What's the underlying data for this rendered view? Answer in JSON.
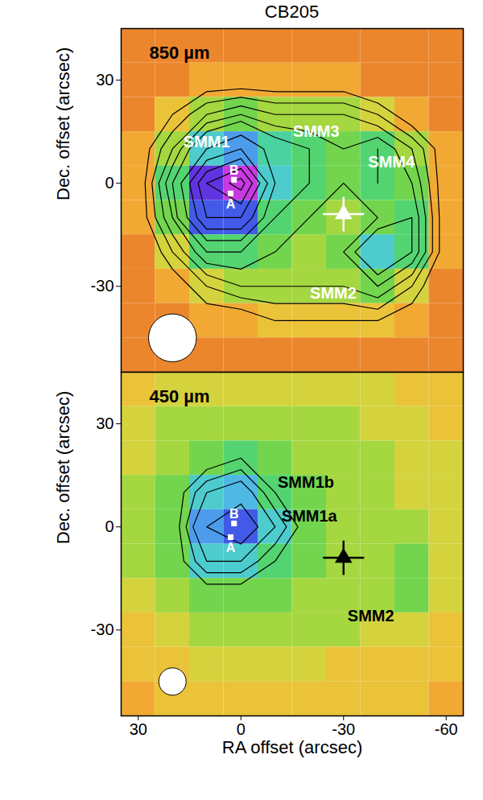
{
  "chart_data": [
    {
      "type": "contour_map",
      "title": "CB205",
      "panel_label": "850 µm",
      "ylabel": "Dec. offset (arcsec)",
      "tick_labels": "y",
      "color": "white",
      "xlim": [
        35,
        -65
      ],
      "ylim": [
        -55,
        45
      ],
      "xticks": [
        30,
        0,
        -30,
        -60
      ],
      "yticks": [
        -30,
        0,
        30
      ],
      "zlim": [
        0,
        10
      ],
      "contour_levels": [
        2,
        2.5,
        3,
        3.5,
        4,
        5,
        6,
        7,
        8,
        9
      ],
      "grid": {
        "x": [
          30,
          20,
          10,
          0,
          -10,
          -20,
          -30,
          -40,
          -50,
          -60
        ],
        "y": [
          40,
          30,
          20,
          10,
          0,
          -10,
          -20,
          -30,
          -40,
          -50
        ],
        "values": [
          [
            1,
            1,
            1,
            1,
            1,
            1,
            1,
            1,
            1,
            1
          ],
          [
            1,
            1,
            1.5,
            1.5,
            1.5,
            1.5,
            1.5,
            1,
            1,
            1
          ],
          [
            1,
            2,
            3,
            3.5,
            3,
            3,
            3,
            2.5,
            1.5,
            1
          ],
          [
            1.5,
            3,
            5,
            6,
            4.5,
            4,
            3.5,
            4,
            3,
            1.5
          ],
          [
            1.5,
            4,
            8,
            9.5,
            5,
            4,
            3.5,
            4,
            3.5,
            1.5
          ],
          [
            1.5,
            3.5,
            7,
            7,
            4,
            3.5,
            3,
            3.5,
            4,
            1.5
          ],
          [
            1,
            2.5,
            4,
            4,
            3.5,
            3,
            3.5,
            5,
            4,
            1.5
          ],
          [
            1,
            1.5,
            2.5,
            3,
            3,
            3,
            3,
            3.5,
            2.5,
            1
          ],
          [
            1,
            1,
            1.5,
            1.5,
            2,
            2,
            2,
            2,
            1.5,
            1
          ],
          [
            1,
            1,
            1,
            1,
            1,
            1,
            1,
            1,
            1,
            1
          ]
        ]
      },
      "annotations": [
        {
          "text": "SMM1",
          "x": 10,
          "y": 12
        },
        {
          "text": "SMM3",
          "x": -22,
          "y": 15
        },
        {
          "text": "SMM4",
          "x": -44,
          "y": 6
        },
        {
          "text": "SMM2",
          "x": -27,
          "y": -32
        }
      ],
      "protostars": [
        {
          "label": "A",
          "x": 3,
          "y": -3
        },
        {
          "label": "B",
          "x": 2,
          "y": 1
        }
      ],
      "star": {
        "x": -30,
        "y": -9,
        "xerr": 6,
        "yerr": 5
      },
      "beam": {
        "x": 20,
        "y": -45,
        "diameter": 14
      }
    },
    {
      "type": "contour_map",
      "panel_label": "450 µm",
      "ylabel": "Dec. offset (arcsec)",
      "xlabel": "RA offset (arcsec)",
      "color": "black",
      "xlim": [
        35,
        -65
      ],
      "ylim": [
        -55,
        45
      ],
      "xticks": [
        30,
        0,
        -30,
        -60
      ],
      "yticks": [
        -30,
        0,
        30
      ],
      "zlim": [
        0,
        10
      ],
      "contour_levels": [
        4,
        4.5,
        5,
        6
      ],
      "grid": {
        "x": [
          30,
          20,
          10,
          0,
          -10,
          -20,
          -30,
          -40,
          -50,
          -60
        ],
        "y": [
          40,
          30,
          20,
          10,
          0,
          -10,
          -20,
          -30,
          -40,
          -50
        ],
        "values": [
          [
            2,
            2.5,
            2.5,
            2.5,
            2.5,
            2.5,
            2.5,
            2.5,
            2,
            2
          ],
          [
            2.5,
            3,
            3,
            3,
            3,
            3,
            3,
            2.5,
            2.5,
            2
          ],
          [
            2.5,
            3,
            3.5,
            4,
            3.5,
            3,
            3,
            3,
            2.5,
            2.5
          ],
          [
            3,
            3.5,
            5,
            5.5,
            4,
            3.5,
            3,
            3,
            2.5,
            2.5
          ],
          [
            3,
            3.5,
            6,
            7,
            5,
            3.5,
            3,
            3,
            3,
            2.5
          ],
          [
            3,
            3.5,
            5,
            5,
            4,
            3.5,
            3,
            3,
            3.5,
            2.5
          ],
          [
            2.5,
            3,
            3.5,
            3.5,
            3.5,
            3,
            3,
            3,
            3.5,
            2.5
          ],
          [
            2,
            2.5,
            3,
            3,
            3,
            3,
            3,
            2.5,
            2.5,
            2
          ],
          [
            2,
            2,
            2.5,
            2.5,
            2.5,
            2.5,
            2,
            2,
            2,
            2
          ],
          [
            1.5,
            2,
            2,
            2,
            2,
            2,
            2,
            2,
            2,
            1.5
          ]
        ]
      },
      "annotations": [
        {
          "text": "SMM1b",
          "x": -19,
          "y": 13
        },
        {
          "text": "SMM1a",
          "x": -20,
          "y": 3
        },
        {
          "text": "SMM2",
          "x": -38,
          "y": -26
        }
      ],
      "protostars": [
        {
          "label": "A",
          "x": 3,
          "y": -3
        },
        {
          "label": "B",
          "x": 2,
          "y": 1
        }
      ],
      "star": {
        "x": -30,
        "y": -9,
        "xerr": 6,
        "yerr": 5
      },
      "beam": {
        "x": 20,
        "y": -45,
        "diameter": 8
      }
    }
  ]
}
